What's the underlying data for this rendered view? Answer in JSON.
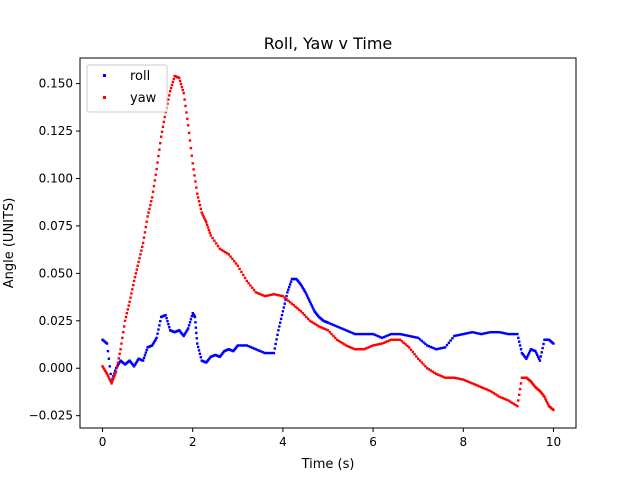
{
  "chart_data": {
    "type": "scatter",
    "title": "Roll, Yaw v Time",
    "xlabel": "Time (s)",
    "ylabel": "Angle (UNITS)",
    "xlim": [
      -0.5,
      10.5
    ],
    "ylim": [
      -0.0315,
      0.1635
    ],
    "xticks": [
      0,
      2,
      4,
      6,
      8,
      10
    ],
    "xtick_labels": [
      "0",
      "2",
      "4",
      "6",
      "8",
      "10"
    ],
    "yticks": [
      -0.025,
      0.0,
      0.025,
      0.05,
      0.075,
      0.1,
      0.125,
      0.15
    ],
    "ytick_labels": [
      "−0.025",
      "0.000",
      "0.025",
      "0.050",
      "0.075",
      "0.100",
      "0.125",
      "0.150"
    ],
    "grid": false,
    "legend": {
      "position": "top-left"
    },
    "series": [
      {
        "name": "roll",
        "color": "#0000ff",
        "x": [
          0,
          0.1,
          0.2,
          0.3,
          0.4,
          0.5,
          0.6,
          0.7,
          0.8,
          0.9,
          1.0,
          1.1,
          1.2,
          1.3,
          1.4,
          1.5,
          1.6,
          1.7,
          1.8,
          1.9,
          2.0,
          2.05,
          2.1,
          2.2,
          2.3,
          2.4,
          2.5,
          2.6,
          2.7,
          2.8,
          2.9,
          3.0,
          3.2,
          3.4,
          3.6,
          3.8,
          3.9,
          4.0,
          4.1,
          4.2,
          4.3,
          4.4,
          4.5,
          4.6,
          4.7,
          4.8,
          4.9,
          5.0,
          5.2,
          5.4,
          5.6,
          5.8,
          6.0,
          6.2,
          6.4,
          6.6,
          6.8,
          7.0,
          7.2,
          7.4,
          7.6,
          7.8,
          8.0,
          8.2,
          8.4,
          8.6,
          8.8,
          9.0,
          9.2,
          9.3,
          9.4,
          9.5,
          9.6,
          9.7,
          9.8,
          9.9,
          10.0
        ],
        "y": [
          0.015,
          0.013,
          -0.007,
          0.0,
          0.004,
          0.002,
          0.004,
          0.001,
          0.005,
          0.004,
          0.011,
          0.012,
          0.016,
          0.027,
          0.028,
          0.02,
          0.019,
          0.02,
          0.017,
          0.021,
          0.029,
          0.027,
          0.013,
          0.004,
          0.003,
          0.006,
          0.007,
          0.006,
          0.009,
          0.01,
          0.009,
          0.012,
          0.012,
          0.01,
          0.008,
          0.008,
          0.02,
          0.03,
          0.04,
          0.047,
          0.047,
          0.044,
          0.04,
          0.035,
          0.03,
          0.027,
          0.025,
          0.024,
          0.022,
          0.02,
          0.018,
          0.018,
          0.018,
          0.016,
          0.018,
          0.018,
          0.017,
          0.016,
          0.012,
          0.01,
          0.011,
          0.017,
          0.018,
          0.019,
          0.018,
          0.019,
          0.019,
          0.018,
          0.018,
          0.008,
          0.005,
          0.01,
          0.009,
          0.004,
          0.015,
          0.015,
          0.013
        ]
      },
      {
        "name": "yaw",
        "color": "#ff0000",
        "x": [
          0,
          0.1,
          0.2,
          0.3,
          0.4,
          0.5,
          0.6,
          0.7,
          0.8,
          0.9,
          1.0,
          1.1,
          1.2,
          1.3,
          1.4,
          1.5,
          1.6,
          1.7,
          1.8,
          1.9,
          2.0,
          2.1,
          2.2,
          2.3,
          2.4,
          2.6,
          2.8,
          3.0,
          3.2,
          3.4,
          3.6,
          3.8,
          4.0,
          4.2,
          4.4,
          4.6,
          4.8,
          5.0,
          5.2,
          5.4,
          5.6,
          5.8,
          6.0,
          6.2,
          6.4,
          6.6,
          6.8,
          7.0,
          7.2,
          7.4,
          7.6,
          7.8,
          8.0,
          8.2,
          8.4,
          8.6,
          8.8,
          9.0,
          9.2,
          9.3,
          9.4,
          9.5,
          9.6,
          9.7,
          9.8,
          9.9,
          10.0
        ],
        "y": [
          0.001,
          -0.003,
          -0.008,
          -0.002,
          0.01,
          0.025,
          0.035,
          0.046,
          0.056,
          0.066,
          0.08,
          0.09,
          0.105,
          0.122,
          0.135,
          0.146,
          0.154,
          0.153,
          0.145,
          0.128,
          0.108,
          0.092,
          0.082,
          0.077,
          0.07,
          0.063,
          0.06,
          0.054,
          0.046,
          0.04,
          0.038,
          0.039,
          0.038,
          0.034,
          0.03,
          0.025,
          0.022,
          0.02,
          0.015,
          0.012,
          0.01,
          0.01,
          0.012,
          0.013,
          0.015,
          0.015,
          0.011,
          0.005,
          0.0,
          -0.003,
          -0.005,
          -0.005,
          -0.006,
          -0.008,
          -0.01,
          -0.012,
          -0.015,
          -0.017,
          -0.02,
          -0.005,
          -0.005,
          -0.007,
          -0.01,
          -0.012,
          -0.015,
          -0.02,
          -0.022
        ]
      }
    ]
  }
}
